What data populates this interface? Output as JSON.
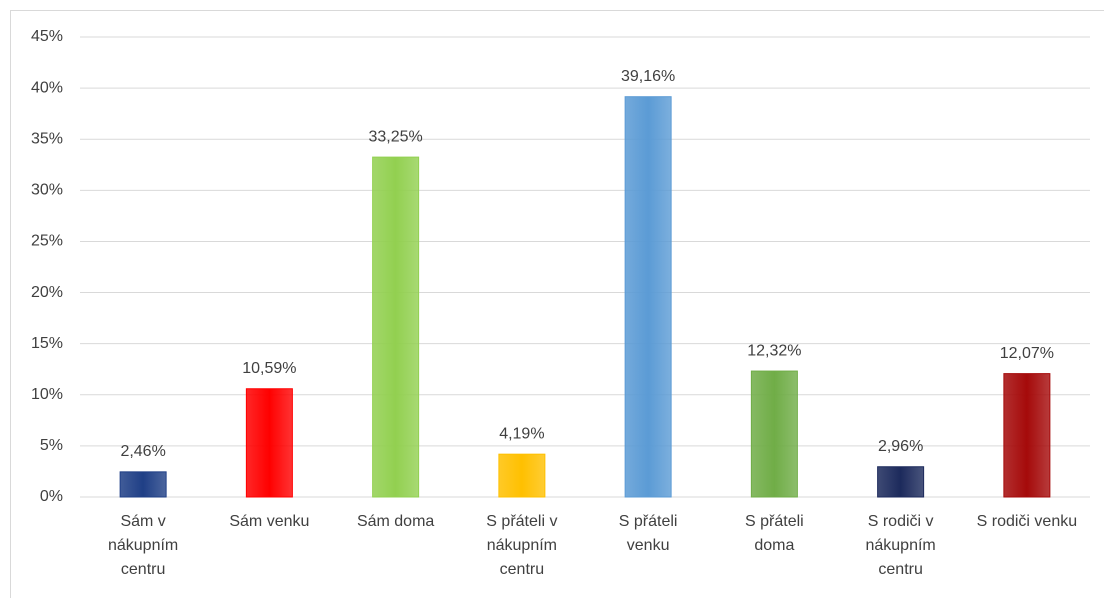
{
  "chart_data": {
    "type": "bar",
    "categories": [
      "Sám v\nnákupním\ncentru",
      "Sám venku",
      "Sám doma",
      "S přáteli v\nnákupním\ncentru",
      "S přáteli\nvenku",
      "S přáteli\ndoma",
      "S rodiči v\nnákupním\ncentru",
      "S rodiči venku"
    ],
    "values": [
      2.46,
      10.59,
      33.25,
      4.19,
      39.16,
      12.32,
      2.96,
      12.07
    ],
    "value_labels": [
      "2,46%",
      "10,59%",
      "33,25%",
      "4,19%",
      "39,16%",
      "12,32%",
      "2,96%",
      "12,07%"
    ],
    "colors": [
      "#1f3f86",
      "#ff0000",
      "#92d050",
      "#ffc000",
      "#5b9bd5",
      "#70ad47",
      "#1c2a5c",
      "#a50a0a"
    ],
    "ylim": [
      0,
      45
    ],
    "yticks": [
      {
        "value": 0,
        "label": "0%"
      },
      {
        "value": 5,
        "label": "5%"
      },
      {
        "value": 10,
        "label": "10%"
      },
      {
        "value": 15,
        "label": "15%"
      },
      {
        "value": 20,
        "label": "20%"
      },
      {
        "value": 25,
        "label": "25%"
      },
      {
        "value": 30,
        "label": "30%"
      },
      {
        "value": 35,
        "label": "35%"
      },
      {
        "value": 40,
        "label": "40%"
      },
      {
        "value": 45,
        "label": "45%"
      }
    ],
    "grid": true
  }
}
